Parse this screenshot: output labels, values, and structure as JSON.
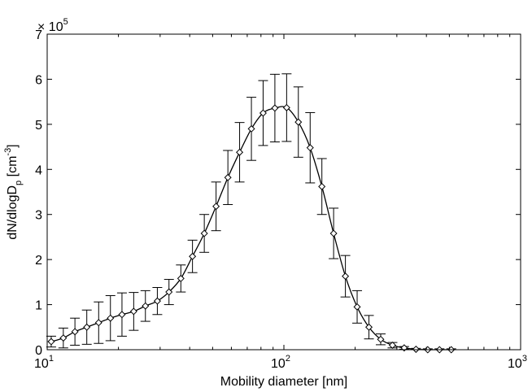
{
  "chart_data": {
    "type": "line",
    "x_scale": "log",
    "xlim": [
      10,
      1000
    ],
    "ylim": [
      0,
      7
    ],
    "y_multiplier": {
      "base": "10",
      "exponent": "5",
      "prefix": "× "
    },
    "xlabel": "Mobility diameter [nm]",
    "ylabel": {
      "main": "dN/dlogD",
      "sub": "p",
      "unit_open": " [cm",
      "unit_sup": "-3",
      "unit_close": "]"
    },
    "grid": false,
    "legend": "none",
    "x_ticks": [
      {
        "value": 10,
        "base": "10",
        "exp": "1"
      },
      {
        "value": 100,
        "base": "10",
        "exp": "2"
      },
      {
        "value": 1000,
        "base": "10",
        "exp": "3"
      }
    ],
    "y_ticks": [
      {
        "value": 0,
        "label": "0"
      },
      {
        "value": 1,
        "label": "1"
      },
      {
        "value": 2,
        "label": "2"
      },
      {
        "value": 3,
        "label": "3"
      },
      {
        "value": 4,
        "label": "4"
      },
      {
        "value": 5,
        "label": "5"
      },
      {
        "value": 6,
        "label": "6"
      },
      {
        "value": 7,
        "label": "7"
      }
    ],
    "series": [
      {
        "marker": "diamond",
        "color": "#000000",
        "x": [
          10.4,
          11.7,
          13.1,
          14.7,
          16.5,
          18.5,
          20.7,
          23.2,
          26.0,
          29.2,
          32.7,
          36.7,
          41.1,
          46.1,
          51.7,
          58.0,
          65.0,
          72.9,
          81.7,
          91.6,
          102.7,
          115.1,
          129.1,
          144.7,
          162.2,
          181.9,
          203.9,
          228.7,
          256.4,
          287.5,
          322.3,
          361.4,
          405.2,
          454.3,
          509.4
        ],
        "y": [
          0.18,
          0.26,
          0.4,
          0.5,
          0.6,
          0.7,
          0.78,
          0.85,
          0.97,
          1.08,
          1.28,
          1.58,
          2.07,
          2.58,
          3.18,
          3.82,
          4.38,
          4.9,
          5.25,
          5.36,
          5.37,
          5.05,
          4.48,
          3.62,
          2.58,
          1.63,
          0.95,
          0.5,
          0.23,
          0.1,
          0.04,
          0.01,
          0.0,
          0.0,
          0.0
        ],
        "err": [
          0.12,
          0.22,
          0.3,
          0.38,
          0.46,
          0.5,
          0.48,
          0.42,
          0.34,
          0.3,
          0.28,
          0.3,
          0.36,
          0.42,
          0.54,
          0.6,
          0.66,
          0.7,
          0.72,
          0.75,
          0.75,
          0.78,
          0.78,
          0.62,
          0.56,
          0.46,
          0.36,
          0.26,
          0.12,
          0.06,
          0.03,
          0.02,
          0.02,
          0.02,
          0.02
        ]
      }
    ]
  }
}
